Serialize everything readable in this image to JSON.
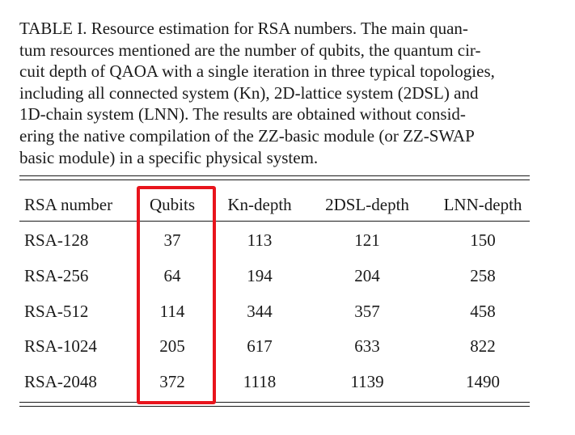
{
  "caption": {
    "lines": [
      "TABLE I. Resource estimation for RSA numbers. The main quan-",
      "tum resources mentioned are the number of qubits, the quantum cir-",
      "cuit depth of QAOA with a single iteration in three typical topologies,",
      "including all connected system (Kn), 2D-lattice system (2DSL) and",
      "1D-chain system (LNN). The results are obtained without consid-",
      "ering the native compilation of the ZZ-basic module (or ZZ-SWAP",
      "basic module) in a specific physical system."
    ]
  },
  "table": {
    "headers": [
      "RSA number",
      "Qubits",
      "Kn-depth",
      "2DSL-depth",
      "LNN-depth"
    ],
    "rows": [
      [
        "RSA-128",
        "37",
        "113",
        "121",
        "150"
      ],
      [
        "RSA-256",
        "64",
        "194",
        "204",
        "258"
      ],
      [
        "RSA-512",
        "114",
        "344",
        "357",
        "458"
      ],
      [
        "RSA-1024",
        "205",
        "617",
        "633",
        "822"
      ],
      [
        "RSA-2048",
        "372",
        "1118",
        "1139",
        "1490"
      ]
    ]
  },
  "highlight": {
    "column": "Qubits",
    "color": "#e8141c"
  }
}
